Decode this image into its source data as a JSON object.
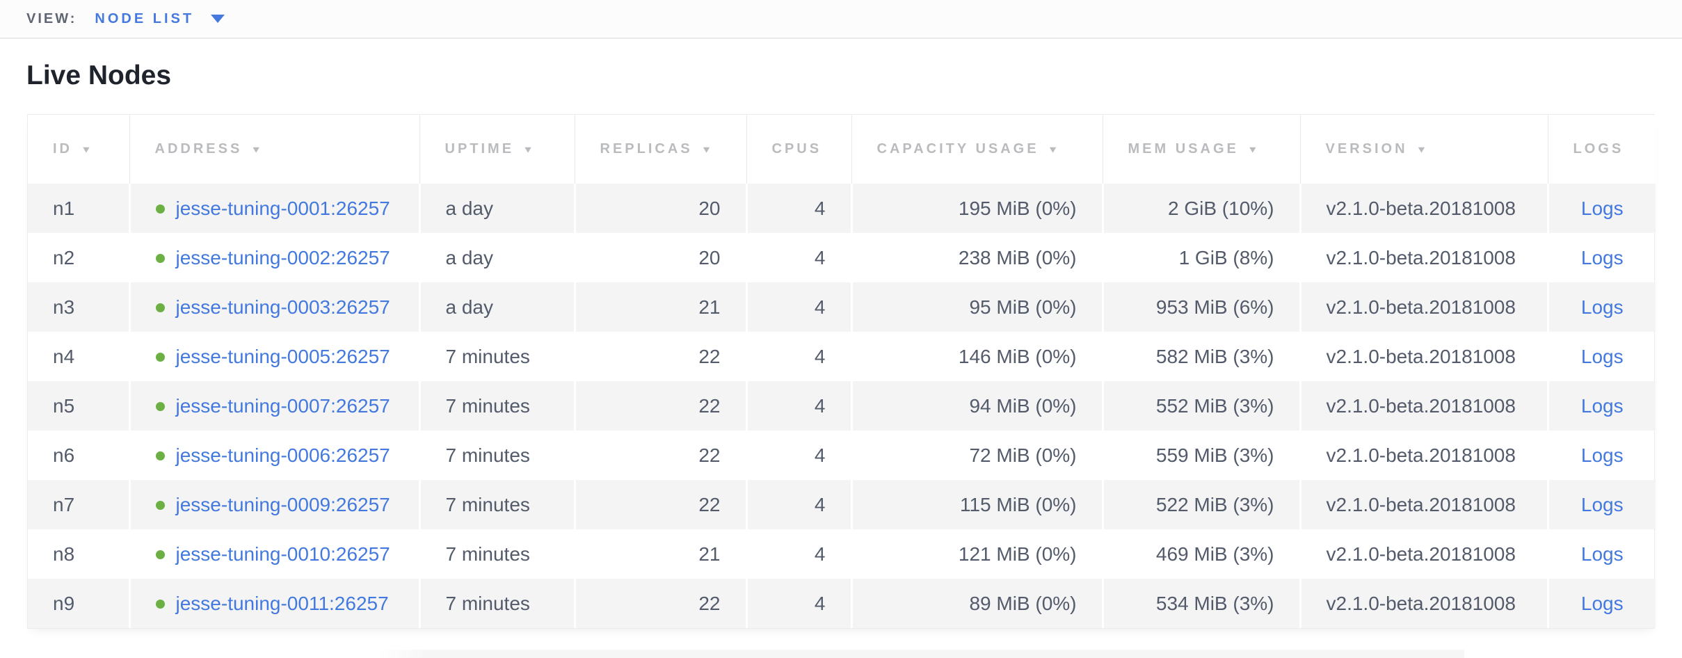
{
  "view_bar": {
    "label": "VIEW:",
    "selected_view": "NODE LIST"
  },
  "page": {
    "title": "Live Nodes"
  },
  "table": {
    "columns": [
      {
        "key": "id",
        "label": "ID",
        "sortable": true,
        "align": "left"
      },
      {
        "key": "address",
        "label": "ADDRESS",
        "sortable": true,
        "align": "left"
      },
      {
        "key": "uptime",
        "label": "UPTIME",
        "sortable": true,
        "align": "left"
      },
      {
        "key": "replicas",
        "label": "REPLICAS",
        "sortable": true,
        "align": "right"
      },
      {
        "key": "cpus",
        "label": "CPUS",
        "sortable": false,
        "align": "right"
      },
      {
        "key": "capacity",
        "label": "CAPACITY USAGE",
        "sortable": true,
        "align": "right"
      },
      {
        "key": "mem",
        "label": "MEM USAGE",
        "sortable": true,
        "align": "right"
      },
      {
        "key": "version",
        "label": "VERSION",
        "sortable": true,
        "align": "left"
      },
      {
        "key": "logs",
        "label": "LOGS",
        "sortable": false,
        "align": "center"
      }
    ],
    "rows": [
      {
        "id": "n1",
        "status": "live",
        "address": "jesse-tuning-0001:26257",
        "uptime": "a day",
        "replicas": "20",
        "cpus": "4",
        "capacity": "195 MiB (0%)",
        "mem": "2 GiB (10%)",
        "version": "v2.1.0-beta.20181008",
        "logs": "Logs"
      },
      {
        "id": "n2",
        "status": "live",
        "address": "jesse-tuning-0002:26257",
        "uptime": "a day",
        "replicas": "20",
        "cpus": "4",
        "capacity": "238 MiB (0%)",
        "mem": "1 GiB (8%)",
        "version": "v2.1.0-beta.20181008",
        "logs": "Logs"
      },
      {
        "id": "n3",
        "status": "live",
        "address": "jesse-tuning-0003:26257",
        "uptime": "a day",
        "replicas": "21",
        "cpus": "4",
        "capacity": "95 MiB (0%)",
        "mem": "953 MiB (6%)",
        "version": "v2.1.0-beta.20181008",
        "logs": "Logs"
      },
      {
        "id": "n4",
        "status": "live",
        "address": "jesse-tuning-0005:26257",
        "uptime": "7 minutes",
        "replicas": "22",
        "cpus": "4",
        "capacity": "146 MiB (0%)",
        "mem": "582 MiB (3%)",
        "version": "v2.1.0-beta.20181008",
        "logs": "Logs"
      },
      {
        "id": "n5",
        "status": "live",
        "address": "jesse-tuning-0007:26257",
        "uptime": "7 minutes",
        "replicas": "22",
        "cpus": "4",
        "capacity": "94 MiB (0%)",
        "mem": "552 MiB (3%)",
        "version": "v2.1.0-beta.20181008",
        "logs": "Logs"
      },
      {
        "id": "n6",
        "status": "live",
        "address": "jesse-tuning-0006:26257",
        "uptime": "7 minutes",
        "replicas": "22",
        "cpus": "4",
        "capacity": "72 MiB (0%)",
        "mem": "559 MiB (3%)",
        "version": "v2.1.0-beta.20181008",
        "logs": "Logs"
      },
      {
        "id": "n7",
        "status": "live",
        "address": "jesse-tuning-0009:26257",
        "uptime": "7 minutes",
        "replicas": "22",
        "cpus": "4",
        "capacity": "115 MiB (0%)",
        "mem": "522 MiB (3%)",
        "version": "v2.1.0-beta.20181008",
        "logs": "Logs"
      },
      {
        "id": "n8",
        "status": "live",
        "address": "jesse-tuning-0010:26257",
        "uptime": "7 minutes",
        "replicas": "21",
        "cpus": "4",
        "capacity": "121 MiB (0%)",
        "mem": "469 MiB (3%)",
        "version": "v2.1.0-beta.20181008",
        "logs": "Logs"
      },
      {
        "id": "n9",
        "status": "live",
        "address": "jesse-tuning-0011:26257",
        "uptime": "7 minutes",
        "replicas": "22",
        "cpus": "4",
        "capacity": "89 MiB (0%)",
        "mem": "534 MiB (3%)",
        "version": "v2.1.0-beta.20181008",
        "logs": "Logs"
      }
    ]
  },
  "colors": {
    "link_blue": "#4379de",
    "accent_blue": "#4579de",
    "live_green": "#6cb043",
    "header_gray": "#b9bbbe",
    "row_stripe": "#f4f4f5",
    "cell_text": "#535b6b"
  }
}
